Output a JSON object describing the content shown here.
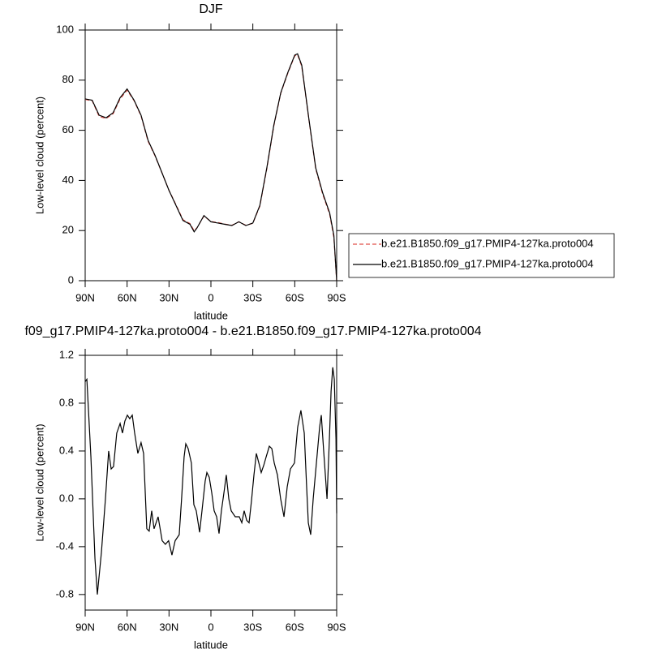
{
  "chart_data": [
    {
      "type": "line",
      "title": "DJF",
      "xlabel": "latitude",
      "ylabel": "Low-level cloud (percent)",
      "x": [
        90,
        85,
        80,
        75,
        70,
        65,
        60,
        55,
        50,
        45,
        40,
        35,
        30,
        25,
        20,
        15,
        12,
        10,
        5,
        0,
        -5,
        -10,
        -15,
        -20,
        -25,
        -30,
        -35,
        -40,
        -45,
        -50,
        -55,
        -60,
        -62,
        -65,
        -70,
        -75,
        -80,
        -85,
        -88,
        -90
      ],
      "xlim": [
        90,
        -90
      ],
      "xticks": [
        {
          "value": 90,
          "label": "90N"
        },
        {
          "value": 60,
          "label": "60N"
        },
        {
          "value": 30,
          "label": "30N"
        },
        0,
        {
          "value": -30,
          "label": "30S"
        },
        {
          "value": -60,
          "label": "60S"
        },
        {
          "value": -90,
          "label": "90S"
        }
      ],
      "ylim": [
        0,
        100
      ],
      "yticks": [
        0,
        20,
        40,
        60,
        80,
        100
      ],
      "legend": "right",
      "series": [
        {
          "name": "b.e21.B1850.f09_g17.PMIP4-127ka.proto004",
          "color": "#e0504a",
          "line_style": "dashed",
          "values": [
            72.3,
            71.8,
            65.5,
            64.7,
            66.6,
            72.5,
            76,
            71.8,
            65.7,
            55.6,
            49.8,
            43,
            36,
            30.3,
            24.3,
            22.8,
            19.9,
            21.1,
            25.8,
            23.6,
            23.2,
            22.6,
            22.1,
            23.5,
            22.1,
            22.9,
            29.7,
            44.6,
            61.7,
            74.8,
            82.7,
            89.7,
            90.2,
            85.5,
            64.8,
            44.6,
            34.5,
            26.5,
            17.2,
            0
          ]
        },
        {
          "name": "b.e21.B1850.f09_g17.PMIP4-127ka.proto004",
          "color": "#000000",
          "line_style": "solid",
          "values": [
            72.5,
            72,
            66,
            65,
            67,
            73,
            76.5,
            72,
            66,
            56,
            50,
            43,
            36,
            30,
            24,
            22.5,
            19.5,
            21,
            26,
            23.5,
            23,
            22.5,
            22,
            23.5,
            22,
            23,
            30,
            45,
            62,
            75,
            83,
            90,
            90.5,
            86,
            65,
            45,
            35,
            27,
            18,
            0
          ]
        }
      ]
    },
    {
      "type": "line",
      "title": "f09_g17.PMIP4-127ka.proto004 - b.e21.B1850.f09_g17.PMIP4-127ka.proto004",
      "xlabel": "latitude",
      "ylabel": "Low-level cloud (percent)",
      "x": [
        90,
        88.8,
        85.9,
        83.0,
        81.3,
        78.4,
        75.5,
        73.2,
        71.4,
        69.7,
        67.4,
        65.0,
        63.3,
        61.6,
        59.8,
        58.1,
        56.3,
        54.6,
        52.3,
        50.0,
        48.2,
        45.9,
        44.2,
        42.4,
        40.7,
        37.8,
        34.9,
        32.6,
        30.3,
        27.9,
        25.6,
        22.7,
        21.0,
        19.2,
        18.0,
        16.3,
        14.0,
        12.2,
        10.5,
        8.1,
        6.4,
        4.1,
        2.9,
        1.2,
        -0.6,
        -2.3,
        -4.1,
        -5.8,
        -7.5,
        -9.3,
        -11.0,
        -12.8,
        -14.5,
        -17.4,
        -20.3,
        -22.1,
        -23.8,
        -25.6,
        -27.3,
        -29.0,
        -30.8,
        -32.5,
        -34.3,
        -36.0,
        -37.8,
        -39.5,
        -41.8,
        -43.6,
        -45.3,
        -47.6,
        -49.9,
        -52.3,
        -54.6,
        -56.9,
        -59.8,
        -62.1,
        -64.4,
        -66.8,
        -68.5,
        -69.7,
        -71.4,
        -73.2,
        -75.5,
        -77.8,
        -79.0,
        -80.7,
        -83.1,
        -84.8,
        -86.0,
        -87.2,
        -88.3,
        -89.5,
        -90
      ],
      "xlim": [
        90,
        -90
      ],
      "xticks": [
        {
          "value": 90,
          "label": "90N"
        },
        {
          "value": 60,
          "label": "60N"
        },
        {
          "value": 30,
          "label": "30N"
        },
        0,
        {
          "value": -30,
          "label": "30S"
        },
        {
          "value": -60,
          "label": "60S"
        },
        {
          "value": -90,
          "label": "90S"
        }
      ],
      "ylim": [
        -0.93,
        1.2
      ],
      "yticks": [
        -0.8,
        -0.4,
        {
          "value": 0,
          "label": "0.0"
        },
        0.4,
        0.8,
        1.2
      ],
      "series": [
        {
          "color": "#000000",
          "line_style": "solid",
          "values": [
            0.98,
            1.0,
            0.35,
            -0.5,
            -0.8,
            -0.45,
            0.0,
            0.4,
            0.25,
            0.27,
            0.55,
            0.63,
            0.55,
            0.65,
            0.7,
            0.67,
            0.7,
            0.55,
            0.38,
            0.47,
            0.38,
            -0.25,
            -0.27,
            -0.1,
            -0.25,
            -0.15,
            -0.35,
            -0.38,
            -0.35,
            -0.47,
            -0.35,
            -0.3,
            0.0,
            0.35,
            0.46,
            0.42,
            0.3,
            -0.05,
            -0.1,
            -0.28,
            -0.1,
            0.15,
            0.22,
            0.18,
            0.05,
            -0.1,
            -0.15,
            -0.29,
            -0.1,
            0.05,
            0.2,
            0.0,
            -0.1,
            -0.15,
            -0.15,
            -0.2,
            -0.1,
            -0.18,
            -0.2,
            -0.02,
            0.2,
            0.38,
            0.3,
            0.22,
            0.28,
            0.35,
            0.44,
            0.42,
            0.3,
            0.2,
            0.0,
            -0.15,
            0.1,
            0.25,
            0.3,
            0.6,
            0.74,
            0.55,
            0.1,
            -0.2,
            -0.3,
            0.0,
            0.3,
            0.6,
            0.7,
            0.4,
            0.0,
            0.5,
            0.9,
            1.1,
            1.0,
            0.5,
            -0.12
          ]
        }
      ]
    }
  ]
}
